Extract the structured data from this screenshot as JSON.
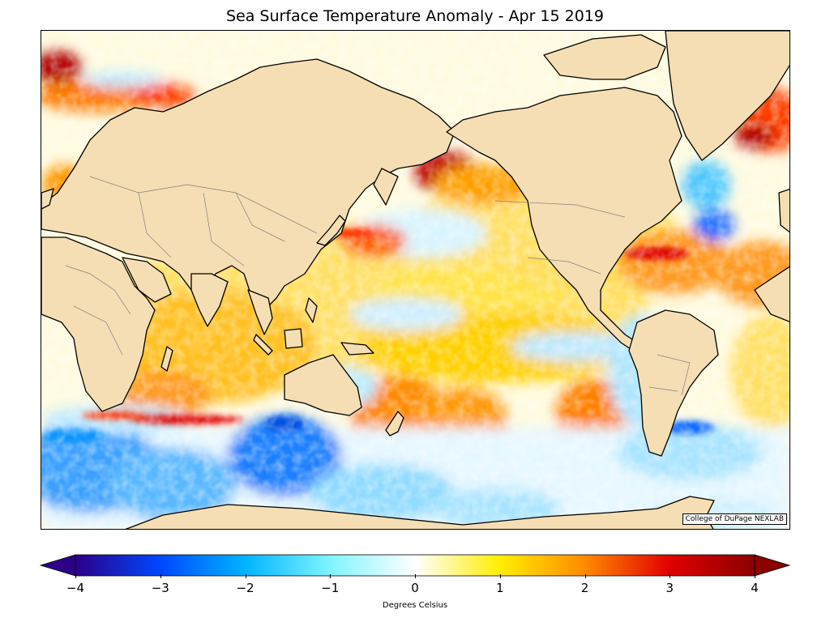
{
  "title": "Sea Surface Temperature Anomaly - Apr 15 2019",
  "credit": "College of DuPage NEXLAB",
  "colorbar": {
    "label": "Degrees Celsius",
    "ticks": [
      "−4",
      "−3",
      "−2",
      "−1",
      "0",
      "1",
      "2",
      "3",
      "4"
    ],
    "min": -4,
    "max": 4,
    "extend": "both",
    "colors": [
      "#2b0087",
      "#0047ff",
      "#00b4ff",
      "#7ff4ff",
      "#ffffff",
      "#ffee00",
      "#ff8a00",
      "#e10000",
      "#8b0000"
    ]
  },
  "map": {
    "land_color": "#f5deb3",
    "coastline_color": "#000000",
    "border_color": "#808080"
  }
}
